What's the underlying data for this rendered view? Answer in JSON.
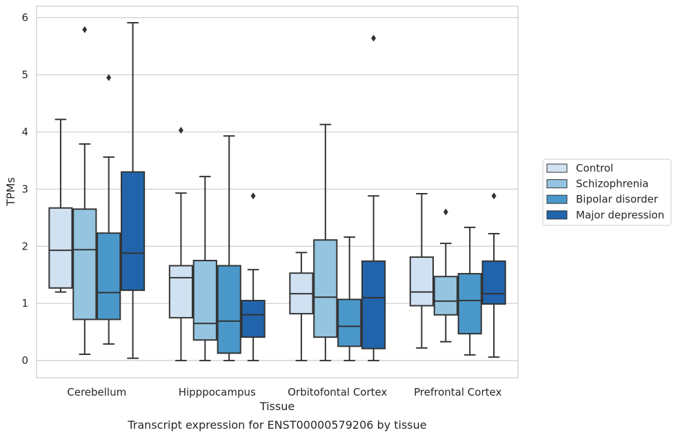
{
  "chart_data": {
    "type": "boxplot",
    "title": "",
    "caption": "Transcript expression for ENST00000579206 by tissue",
    "xlabel": "Tissue",
    "ylabel": "TPMs",
    "ylim": [
      -0.3,
      6.2
    ],
    "yticks": [
      "0",
      "1",
      "2",
      "3",
      "4",
      "5",
      "6"
    ],
    "grid": true,
    "legend_position": "right",
    "categories": [
      "Cerebellum",
      "Hipppocampus",
      "Orbitofontal Cortex",
      "Prefrontal Cortex"
    ],
    "series": [
      {
        "name": "Control",
        "color": "#d0e1f2",
        "boxes": [
          {
            "whislo": 1.2,
            "q1": 1.27,
            "med": 1.93,
            "q3": 2.67,
            "whishi": 4.22,
            "fliers": []
          },
          {
            "whislo": 0.0,
            "q1": 0.75,
            "med": 1.45,
            "q3": 1.66,
            "whishi": 2.93,
            "fliers": [
              4.03
            ]
          },
          {
            "whislo": 0.0,
            "q1": 0.82,
            "med": 1.17,
            "q3": 1.53,
            "whishi": 1.89,
            "fliers": []
          },
          {
            "whislo": 0.22,
            "q1": 0.96,
            "med": 1.2,
            "q3": 1.81,
            "whishi": 2.92,
            "fliers": []
          }
        ]
      },
      {
        "name": "Schizophrenia",
        "color": "#94c4df",
        "boxes": [
          {
            "whislo": 0.11,
            "q1": 0.72,
            "med": 1.94,
            "q3": 2.65,
            "whishi": 3.79,
            "fliers": [
              5.79
            ]
          },
          {
            "whislo": 0.0,
            "q1": 0.36,
            "med": 0.65,
            "q3": 1.75,
            "whishi": 3.22,
            "fliers": []
          },
          {
            "whislo": 0.0,
            "q1": 0.41,
            "med": 1.11,
            "q3": 2.11,
            "whishi": 4.13,
            "fliers": []
          },
          {
            "whislo": 0.33,
            "q1": 0.8,
            "med": 1.04,
            "q3": 1.47,
            "whishi": 2.05,
            "fliers": [
              2.6
            ]
          }
        ]
      },
      {
        "name": "Bipolar disorder",
        "color": "#4a98c9",
        "boxes": [
          {
            "whislo": 0.29,
            "q1": 0.72,
            "med": 1.19,
            "q3": 2.23,
            "whishi": 3.56,
            "fliers": [
              4.95
            ]
          },
          {
            "whislo": 0.0,
            "q1": 0.13,
            "med": 0.69,
            "q3": 1.66,
            "whishi": 3.93,
            "fliers": []
          },
          {
            "whislo": 0.0,
            "q1": 0.25,
            "med": 0.6,
            "q3": 1.07,
            "whishi": 2.16,
            "fliers": []
          },
          {
            "whislo": 0.1,
            "q1": 0.47,
            "med": 1.05,
            "q3": 1.52,
            "whishi": 2.33,
            "fliers": []
          }
        ]
      },
      {
        "name": "Major depression",
        "color": "#2164ab",
        "boxes": [
          {
            "whislo": 0.04,
            "q1": 1.23,
            "med": 1.88,
            "q3": 3.3,
            "whishi": 5.91,
            "fliers": []
          },
          {
            "whislo": 0.0,
            "q1": 0.41,
            "med": 0.8,
            "q3": 1.05,
            "whishi": 1.59,
            "fliers": [
              2.88
            ]
          },
          {
            "whislo": 0.0,
            "q1": 0.21,
            "med": 1.1,
            "q3": 1.74,
            "whishi": 2.88,
            "fliers": [
              5.64
            ]
          },
          {
            "whislo": 0.06,
            "q1": 0.99,
            "med": 1.17,
            "q3": 1.74,
            "whishi": 2.22,
            "fliers": [
              2.88
            ]
          }
        ]
      }
    ]
  },
  "style": {
    "box_edge_color": "#333333",
    "grid_color": "#cccccc",
    "frame_color": "#cccccc"
  }
}
